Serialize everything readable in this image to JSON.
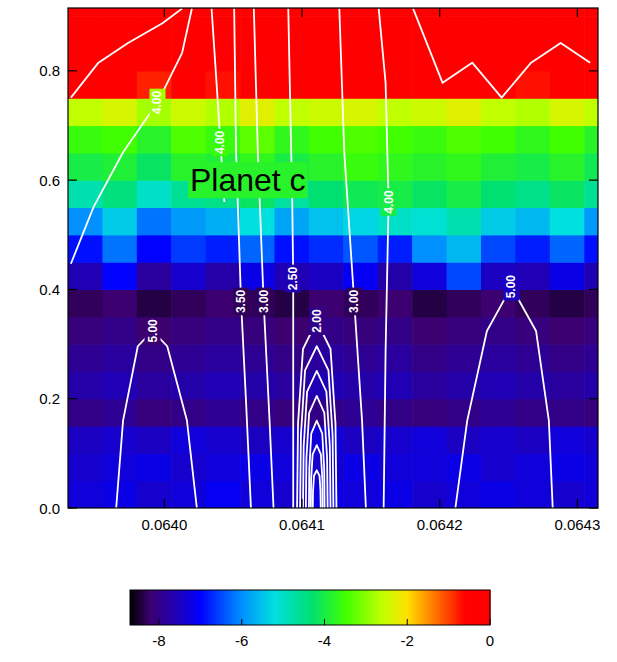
{
  "chart_data": {
    "type": "heatmap",
    "xlim": [
      0.06393,
      0.064315
    ],
    "ylim": [
      0,
      0.915
    ],
    "xticks": [
      {
        "value": 0.064,
        "label": "0.0640"
      },
      {
        "value": 0.0641,
        "label": "0.0641"
      },
      {
        "value": 0.0642,
        "label": "0.0642"
      },
      {
        "value": 0.0643,
        "label": "0.0643"
      }
    ],
    "yticks": [
      {
        "value": 0,
        "label": "0.0"
      },
      0.2,
      0.4,
      0.6,
      0.8
    ],
    "x_edges": [
      0.06393,
      0.063955,
      0.06398,
      0.064005,
      0.06403,
      0.064055,
      0.06408,
      0.064105,
      0.06413,
      0.064155,
      0.06418,
      0.064205,
      0.06423,
      0.064255,
      0.06428,
      0.064305,
      0.06433
    ],
    "y_edges": [
      0,
      0.05,
      0.1,
      0.15,
      0.2,
      0.25,
      0.3,
      0.35,
      0.4,
      0.45,
      0.5,
      0.55,
      0.6,
      0.65,
      0.7,
      0.75,
      0.8,
      0.85,
      0.9,
      0.915
    ],
    "values": [
      [
        -7.3,
        -7.2,
        -7.4,
        -7.3,
        -7.1,
        -7.3,
        -7.4,
        -7.2,
        -7.3,
        -7.2,
        -7.4,
        -7.3,
        -7.2,
        -7.3,
        -7.4,
        -7.3
      ],
      [
        -7.4,
        -7.3,
        -7.2,
        -7.4,
        -7.3,
        -7.2,
        -7.3,
        -7.4,
        -7.2,
        -7.3,
        -7.3,
        -7.2,
        -7.4,
        -7.3,
        -7.2,
        -7.3
      ],
      [
        -7.5,
        -7.4,
        -7.5,
        -7.3,
        -7.4,
        -7.5,
        -7.4,
        -7.3,
        -7.5,
        -7.4,
        -7.3,
        -7.5,
        -7.4,
        -7.5,
        -7.3,
        -7.4
      ],
      [
        -8.0,
        -7.9,
        -8.1,
        -8.0,
        -7.9,
        -8.0,
        -8.1,
        -8.0,
        -7.9,
        -8.0,
        -8.1,
        -8.0,
        -7.9,
        -8.0,
        -8.0,
        -8.1
      ],
      [
        -7.7,
        -7.6,
        -7.8,
        -7.7,
        -7.6,
        -7.7,
        -7.8,
        -7.6,
        -7.7,
        -7.6,
        -7.8,
        -7.7,
        -7.6,
        -7.7,
        -7.8,
        -7.7
      ],
      [
        -7.9,
        -7.8,
        -8.0,
        -7.9,
        -7.8,
        -7.9,
        -8.0,
        -7.8,
        -7.9,
        -7.8,
        -8.0,
        -7.9,
        -7.8,
        -7.9,
        -8.0,
        -7.9
      ],
      [
        -8.1,
        -8.0,
        -8.2,
        -8.1,
        -8.0,
        -8.1,
        -8.2,
        -8.0,
        -8.1,
        -8.0,
        -8.2,
        -8.1,
        -8.0,
        -8.1,
        -8.2,
        -8.1
      ],
      [
        -8.3,
        -8.2,
        -8.4,
        -8.3,
        -8.2,
        -8.3,
        -8.4,
        -8.2,
        -8.3,
        -8.2,
        -8.4,
        -8.3,
        -8.2,
        -8.3,
        -8.4,
        -8.3
      ],
      [
        -7.6,
        -7.0,
        -7.8,
        -7.4,
        -7.7,
        -7.2,
        -7.6,
        -7.5,
        -7.1,
        -7.7,
        -7.3,
        -6.5,
        -7.5,
        -7.6,
        -7.2,
        -7.6
      ],
      [
        -6.9,
        -6.2,
        -7.0,
        -6.6,
        -6.8,
        -6.3,
        -6.9,
        -6.7,
        -6.4,
        -6.8,
        -6.0,
        -5.6,
        -6.5,
        -6.8,
        -6.3,
        -6.9
      ],
      [
        -6.0,
        -5.4,
        -6.2,
        -5.9,
        -5.7,
        -5.2,
        -5.8,
        -5.5,
        -5.3,
        -5.0,
        -5.1,
        -4.8,
        -5.4,
        -5.6,
        -5.2,
        -5.9
      ],
      [
        -4.8,
        -4.4,
        -5.0,
        -4.6,
        -4.5,
        -4.2,
        -4.7,
        -4.3,
        -4.1,
        -4.0,
        -4.2,
        -4.0,
        -4.3,
        -4.5,
        -4.2,
        -4.6
      ],
      [
        -4.0,
        -3.9,
        -4.2,
        -3.8,
        -3.9,
        -3.7,
        -4.0,
        -3.8,
        -3.6,
        -3.7,
        -3.8,
        -3.7,
        -3.9,
        -4.0,
        -3.8,
        -4.1
      ],
      [
        -3.6,
        -3.5,
        -3.8,
        -3.4,
        -3.6,
        -3.3,
        -3.7,
        -3.5,
        -3.4,
        -3.5,
        -3.6,
        -3.4,
        -3.5,
        -3.7,
        -3.5,
        -3.8
      ],
      [
        -2.6,
        -2.4,
        -2.8,
        -2.5,
        -2.7,
        -2.3,
        -2.6,
        -2.5,
        -2.4,
        -2.6,
        -2.5,
        -2.3,
        -2.6,
        -2.7,
        -2.4,
        -2.6
      ],
      [
        -0.6,
        -0.4,
        -0.8,
        -0.5,
        -0.7,
        -0.3,
        -0.6,
        -0.5,
        -0.4,
        -0.6,
        -0.5,
        -0.3,
        -0.6,
        -0.7,
        -0.4,
        -0.6
      ],
      [
        0,
        0,
        -0.1,
        0,
        0,
        0,
        0,
        0,
        0,
        -0.1,
        0,
        0,
        0,
        0,
        0,
        0
      ],
      [
        0,
        0,
        0,
        0,
        0,
        0,
        0,
        0,
        0,
        0,
        0,
        0,
        0,
        0,
        0,
        0
      ],
      [
        0,
        0,
        0,
        0,
        0,
        0,
        0,
        0,
        0,
        0,
        0,
        0,
        0,
        0,
        0,
        0
      ]
    ],
    "colorbar": {
      "range": [
        -8.7,
        0
      ],
      "ticks": [
        -8,
        -6,
        -4,
        -2,
        0
      ]
    },
    "color": "#ffffff",
    "contours": [
      {
        "label": "4.00",
        "x": [
          0.0639321,
          0.0639486,
          0.06397,
          0.063995,
          0.0640129,
          0.06402
        ],
        "y": [
          0.447,
          0.551,
          0.651,
          0.742,
          0.833,
          0.914
        ]
      },
      {
        "label": "5.00",
        "x": [
          0.063965,
          0.06397,
          0.0639807,
          0.0639914,
          0.0640021,
          0.0640164,
          0.0640236
        ],
        "y": [
          0,
          0.16,
          0.296,
          0.324,
          0.296,
          0.16,
          0
        ]
      },
      {
        "label": "3.50",
        "x": [
          0.0640507,
          0.0640521,
          0.0640557,
          0.0640593,
          0.0640629
        ],
        "y": [
          0.914,
          0.651,
          0.378,
          0.196,
          0
        ]
      },
      {
        "label": "4.00",
        "x": [
          0.0640343,
          0.0640379,
          0.0640407,
          0.0640436
        ],
        "y": [
          0.914,
          0.778,
          0.669,
          0.56
        ]
      },
      {
        "label": "3.00",
        "x": [
          0.064065,
          0.0640679,
          0.0640721,
          0.0640764,
          0.0640793
        ],
        "y": [
          0.914,
          0.651,
          0.378,
          0.16,
          0
        ]
      },
      {
        "label": "2.50",
        "x": [
          0.06409,
          0.0640914,
          0.0640929,
          0.0640936,
          0.0640936,
          0.0640936
        ],
        "y": [
          0.914,
          0.742,
          0.56,
          0.42,
          0.287,
          0
        ]
      },
      {
        "label": "2.00",
        "x": [
          0.0640964,
          0.0640971,
          0.0641007,
          0.0641107,
          0.0641207,
          0.0641243,
          0.064125
        ],
        "y": [
          0,
          0.154,
          0.291,
          0.342,
          0.291,
          0.154,
          0
        ]
      },
      {
        "x": [
          0.0640986,
          0.0640992,
          0.0641022,
          0.0641107,
          0.0641192,
          0.0641222,
          0.0641228
        ],
        "y": [
          0,
          0.133,
          0.252,
          0.296,
          0.252,
          0.133,
          0
        ]
      },
      {
        "x": [
          0.0641007,
          0.0641012,
          0.0641037,
          0.0641107,
          0.0641177,
          0.0641202,
          0.0641207
        ],
        "y": [
          0,
          0.113,
          0.213,
          0.251,
          0.213,
          0.113,
          0
        ]
      },
      {
        "x": [
          0.0641028,
          0.0641032,
          0.0641052,
          0.0641107,
          0.0641162,
          0.0641182,
          0.0641186
        ],
        "y": [
          0,
          0.092,
          0.174,
          0.205,
          0.174,
          0.092,
          0
        ]
      },
      {
        "x": [
          0.064105,
          0.0641053,
          0.0641067,
          0.0641107,
          0.0641147,
          0.0641161,
          0.0641164
        ],
        "y": [
          0,
          0.072,
          0.136,
          0.16,
          0.136,
          0.072,
          0
        ]
      },
      {
        "x": [
          0.0641064,
          0.0641066,
          0.0641077,
          0.0641107,
          0.0641137,
          0.0641148,
          0.064115
        ],
        "y": [
          0,
          0.052,
          0.098,
          0.115,
          0.098,
          0.052,
          0
        ]
      },
      {
        "x": [
          0.0641078,
          0.064108,
          0.0641087,
          0.0641107,
          0.0641127,
          0.0641134,
          0.0641136
        ],
        "y": [
          0,
          0.031,
          0.059,
          0.069,
          0.059,
          0.031,
          0
        ]
      },
      {
        "label": "3.00",
        "x": [
          0.0641271,
          0.0641307,
          0.0641379,
          0.0641436,
          0.0641464
        ],
        "y": [
          0.914,
          0.651,
          0.378,
          0.16,
          0
        ]
      },
      {
        "label": "4.00",
        "x": [
          0.0641557,
          0.0641607,
          0.0641629,
          0.0641607,
          0.0641593
        ],
        "y": [
          0.914,
          0.778,
          0.56,
          0.287,
          0
        ]
      },
      {
        "label": "5.00",
        "x": [
          0.0642114,
          0.06422,
          0.0642343,
          0.0642521,
          0.06427,
          0.0642793,
          0.0642821
        ],
        "y": [
          0,
          0.16,
          0.324,
          0.405,
          0.324,
          0.16,
          0
        ]
      },
      {
        "x": [
          0.0639321,
          0.0639521,
          0.0639736,
          0.0639986,
          0.0640129
        ],
        "y": [
          0.751,
          0.815,
          0.851,
          0.887,
          0.914
        ]
      },
      {
        "x": [
          0.0641807,
          0.0642021,
          0.0642236,
          0.064245,
          0.0642664,
          0.0642879,
          0.0643093
        ],
        "y": [
          0.914,
          0.778,
          0.815,
          0.751,
          0.815,
          0.851,
          0.815
        ]
      }
    ],
    "annotations": [
      {
        "text": "Planet c",
        "x": 0.0640186,
        "y": 0.6
      }
    ]
  }
}
